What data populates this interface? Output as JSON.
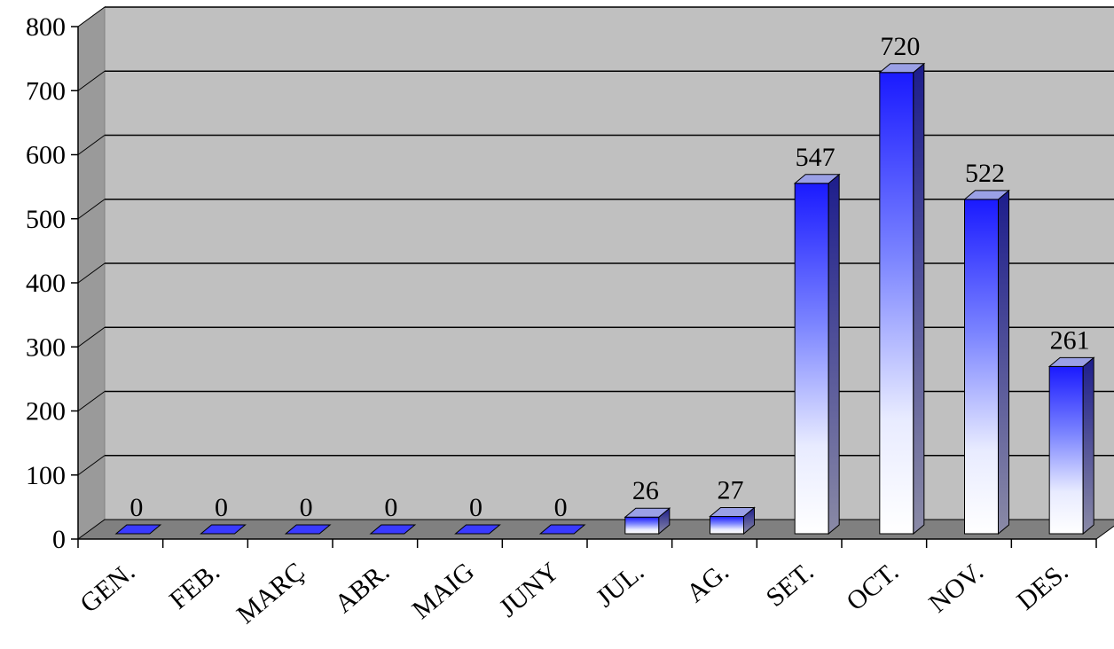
{
  "chart_data": {
    "type": "bar",
    "categories": [
      "GEN.",
      "FEB.",
      "MARÇ",
      "ABR.",
      "MAIG",
      "JUNY",
      "JUL.",
      "AG.",
      "SET.",
      "OCT.",
      "NOV.",
      "DES."
    ],
    "values": [
      0,
      0,
      0,
      0,
      0,
      0,
      26,
      27,
      547,
      720,
      522,
      261
    ],
    "data_labels": [
      "0",
      "0",
      "0",
      "0",
      "0",
      "0",
      "26",
      "27",
      "547",
      "720",
      "522",
      "261"
    ],
    "yticks": [
      "0",
      "100",
      "200",
      "300",
      "400",
      "500",
      "600",
      "700",
      "800"
    ],
    "ylim": [
      0,
      800
    ],
    "grid": true,
    "legend": "none",
    "style": "3d-column",
    "colors": {
      "wall": "#c0c0c0",
      "floor": "#808080",
      "bar_dark": "#1a1aff",
      "bar_light": "#ffffff",
      "bar_side": "#1d1d8c",
      "bar_top": "#9aa0e6"
    }
  }
}
